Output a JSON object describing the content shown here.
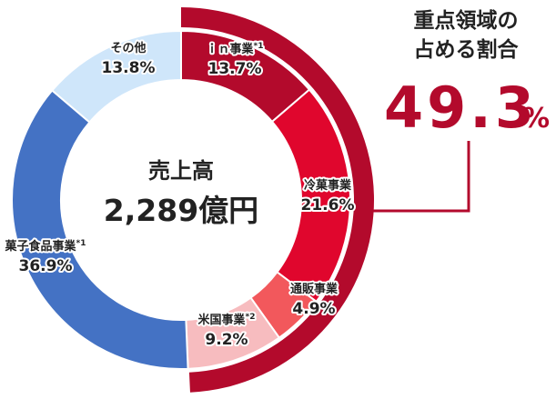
{
  "chart_data": {
    "type": "pie",
    "center": {
      "title": "売上高",
      "value": "2,289億円"
    },
    "slices": [
      {
        "label": "ｉｎ事業",
        "mark": "*1",
        "value": 13.7,
        "value_text": "13.7%",
        "color": "#b30a2c"
      },
      {
        "label": "冷菓事業",
        "mark": "",
        "value": 21.6,
        "value_text": "21.6%",
        "color": "#e0062d"
      },
      {
        "label": "通販事業",
        "mark": "",
        "value": 4.9,
        "value_text": "4.9%",
        "color": "#f2585c"
      },
      {
        "label": "米国事業",
        "mark": "*2",
        "value": 9.2,
        "value_text": "9.2%",
        "color": "#f7bcbf"
      },
      {
        "label": "菓子食品事業",
        "mark": "*1",
        "value": 36.9,
        "value_text": "36.9%",
        "color": "#4472c4"
      },
      {
        "label": "その他",
        "mark": "",
        "value": 13.8,
        "value_text": "13.8%",
        "color": "#cfe6fa"
      }
    ],
    "highlight": {
      "title_line1": "重点領域の",
      "title_line2": "占める割合",
      "value": 49.3,
      "value_text": "49.3",
      "unit": "%",
      "color": "#b30a2c"
    }
  }
}
